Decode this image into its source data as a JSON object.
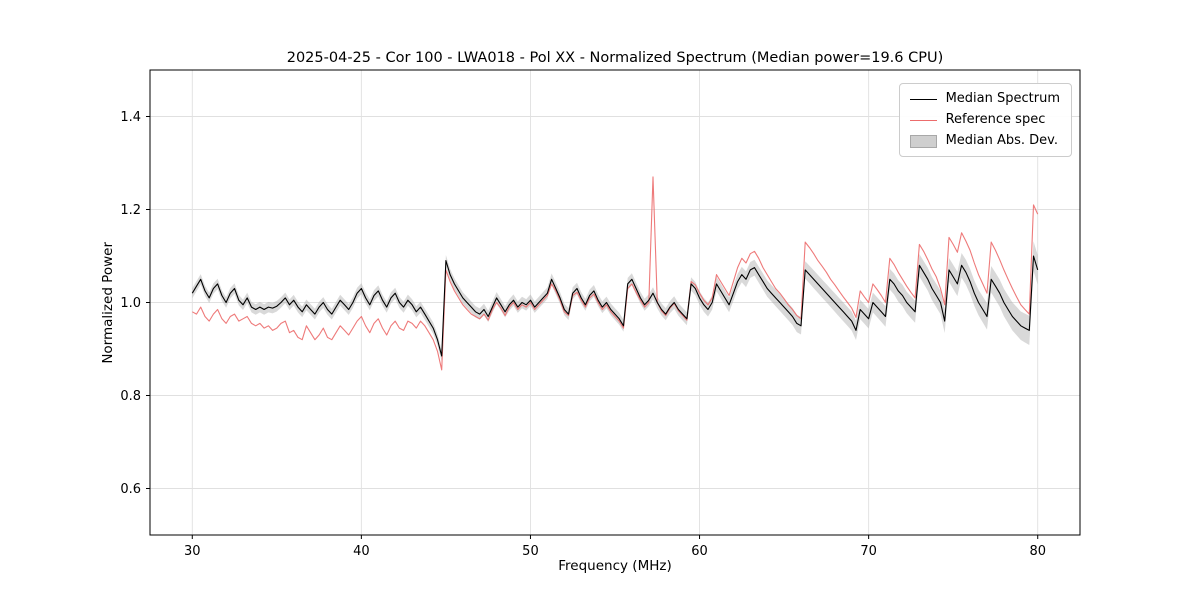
{
  "figure": {
    "title": "2025-04-25 - Cor 100 - LWA018 - Pol XX - Normalized Spectrum (Median power=19.6 CPU)",
    "xlabel": "Frequency (MHz)",
    "ylabel": "Normalized Power"
  },
  "legend": {
    "items": [
      {
        "label": "Median Spectrum",
        "type": "line",
        "color": "#000000"
      },
      {
        "label": "Reference spec",
        "type": "line",
        "color": "#ec6c6c"
      },
      {
        "label": "Median Abs. Dev.",
        "type": "patch",
        "color": "#cfcfcf",
        "edge": "#a8a8a8"
      }
    ]
  },
  "chart_data": {
    "type": "line",
    "title": "2025-04-25 - Cor 100 - LWA018 - Pol XX - Normalized Spectrum (Median power=19.6 CPU)",
    "xlabel": "Frequency (MHz)",
    "ylabel": "Normalized Power",
    "xlim": [
      27.5,
      82.5
    ],
    "ylim": [
      0.5,
      1.5
    ],
    "xticks": [
      30,
      40,
      50,
      60,
      70,
      80
    ],
    "xticklabels": [
      "30",
      "40",
      "50",
      "60",
      "70",
      "80"
    ],
    "yticks": [
      0.6,
      0.8,
      1.0,
      1.2,
      1.4
    ],
    "yticklabels": [
      "0.6",
      "0.8",
      "1.0",
      "1.2",
      "1.4"
    ],
    "grid": true,
    "legend_position": "upper right",
    "x_start": 30,
    "x_step": 0.25,
    "series": [
      {
        "name": "Median Spectrum",
        "color": "#000000",
        "opacity": 1.0,
        "values": [
          1.02,
          1.035,
          1.05,
          1.025,
          1.01,
          1.03,
          1.04,
          1.015,
          1.0,
          1.02,
          1.03,
          1.005,
          0.995,
          1.01,
          0.99,
          0.985,
          0.99,
          0.985,
          0.99,
          0.988,
          0.992,
          1.0,
          1.01,
          0.995,
          1.005,
          0.99,
          0.98,
          0.995,
          0.985,
          0.975,
          0.99,
          1.0,
          0.985,
          0.975,
          0.99,
          1.005,
          0.995,
          0.985,
          1.0,
          1.02,
          1.03,
          1.01,
          0.995,
          1.015,
          1.025,
          1.005,
          0.99,
          1.01,
          1.02,
          1.0,
          0.99,
          1.005,
          0.995,
          0.98,
          0.99,
          0.975,
          0.96,
          0.945,
          0.92,
          0.885,
          1.09,
          1.06,
          1.04,
          1.025,
          1.01,
          1.0,
          0.99,
          0.98,
          0.975,
          0.985,
          0.97,
          0.99,
          1.01,
          0.995,
          0.98,
          0.995,
          1.005,
          0.99,
          1.0,
          0.995,
          1.005,
          0.99,
          1.0,
          1.01,
          1.02,
          1.05,
          1.03,
          1.01,
          0.985,
          0.975,
          1.02,
          1.03,
          1.01,
          0.995,
          1.015,
          1.025,
          1.005,
          0.99,
          1.0,
          0.985,
          0.975,
          0.965,
          0.95,
          1.04,
          1.05,
          1.03,
          1.01,
          0.995,
          1.005,
          1.02,
          1.0,
          0.985,
          0.975,
          0.99,
          1.0,
          0.985,
          0.975,
          0.965,
          1.04,
          1.03,
          1.01,
          0.995,
          0.985,
          1.0,
          1.04,
          1.025,
          1.01,
          0.995,
          1.02,
          1.045,
          1.06,
          1.05,
          1.07,
          1.075,
          1.06,
          1.045,
          1.03,
          1.02,
          1.01,
          1.0,
          0.99,
          0.98,
          0.97,
          0.955,
          0.95,
          1.07,
          1.06,
          1.05,
          1.04,
          1.03,
          1.02,
          1.01,
          1.0,
          0.99,
          0.98,
          0.97,
          0.96,
          0.94,
          0.985,
          0.975,
          0.965,
          1.0,
          0.99,
          0.98,
          0.97,
          1.05,
          1.04,
          1.025,
          1.015,
          1.0,
          0.99,
          0.98,
          1.08,
          1.065,
          1.05,
          1.03,
          1.015,
          1.0,
          0.96,
          1.07,
          1.055,
          1.04,
          1.08,
          1.065,
          1.045,
          1.02,
          1.0,
          0.985,
          0.97,
          1.05,
          1.035,
          1.02,
          1.0,
          0.985,
          0.97,
          0.96,
          0.95,
          0.945,
          0.94,
          1.1,
          1.07
        ]
      },
      {
        "name": "Reference spec",
        "color": "#ec6c6c",
        "opacity": 0.9,
        "values": [
          0.98,
          0.975,
          0.99,
          0.97,
          0.96,
          0.975,
          0.985,
          0.965,
          0.955,
          0.97,
          0.975,
          0.96,
          0.965,
          0.97,
          0.955,
          0.95,
          0.955,
          0.945,
          0.95,
          0.94,
          0.945,
          0.955,
          0.96,
          0.935,
          0.94,
          0.925,
          0.92,
          0.95,
          0.935,
          0.92,
          0.93,
          0.945,
          0.925,
          0.92,
          0.935,
          0.95,
          0.94,
          0.93,
          0.945,
          0.96,
          0.97,
          0.95,
          0.935,
          0.955,
          0.965,
          0.945,
          0.93,
          0.95,
          0.96,
          0.945,
          0.94,
          0.96,
          0.955,
          0.945,
          0.96,
          0.95,
          0.935,
          0.92,
          0.895,
          0.855,
          1.07,
          1.045,
          1.025,
          1.01,
          0.995,
          0.985,
          0.975,
          0.97,
          0.965,
          0.975,
          0.962,
          0.985,
          1.0,
          0.988,
          0.972,
          0.99,
          1.0,
          0.985,
          0.995,
          0.99,
          1.0,
          0.985,
          0.995,
          1.005,
          1.015,
          1.04,
          1.025,
          1.005,
          0.98,
          0.972,
          1.015,
          1.022,
          1.005,
          0.99,
          1.01,
          1.018,
          1.0,
          0.985,
          0.995,
          0.98,
          0.97,
          0.96,
          0.945,
          1.03,
          1.04,
          1.022,
          1.005,
          0.99,
          1.0,
          1.27,
          1.0,
          0.982,
          0.972,
          0.988,
          0.998,
          0.982,
          0.972,
          0.962,
          1.045,
          1.038,
          1.02,
          1.005,
          0.995,
          1.01,
          1.06,
          1.045,
          1.03,
          1.015,
          1.045,
          1.075,
          1.095,
          1.085,
          1.105,
          1.11,
          1.095,
          1.075,
          1.06,
          1.045,
          1.03,
          1.02,
          1.008,
          0.995,
          0.985,
          0.972,
          0.965,
          1.13,
          1.118,
          1.105,
          1.09,
          1.078,
          1.065,
          1.05,
          1.038,
          1.025,
          1.012,
          1.0,
          0.988,
          0.968,
          1.025,
          1.012,
          1.0,
          1.04,
          1.028,
          1.015,
          1.0,
          1.095,
          1.082,
          1.065,
          1.05,
          1.035,
          1.022,
          1.01,
          1.125,
          1.11,
          1.092,
          1.072,
          1.055,
          1.03,
          0.995,
          1.14,
          1.125,
          1.108,
          1.15,
          1.132,
          1.112,
          1.085,
          1.06,
          1.04,
          1.02,
          1.13,
          1.112,
          1.092,
          1.07,
          1.05,
          1.03,
          1.012,
          0.995,
          0.985,
          0.975,
          1.21,
          1.19
        ]
      }
    ],
    "band": {
      "name": "Median Abs. Dev.",
      "around_series": "Median Spectrum",
      "color": "#aaaaaa",
      "opacity": 0.45,
      "halfwidth_breakpoints": [
        [
          30,
          0.011
        ],
        [
          58,
          0.013
        ],
        [
          63,
          0.017
        ],
        [
          70,
          0.021
        ],
        [
          76,
          0.027
        ],
        [
          80,
          0.032
        ]
      ]
    },
    "style": {
      "grid_color": "#e0e0e0",
      "spine_color": "#000000",
      "line_width": 1.1
    }
  }
}
